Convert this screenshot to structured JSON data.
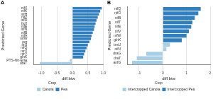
{
  "chart_data": [
    {
      "type": "bar",
      "title": "A",
      "orientation": "horizontal",
      "grid": true,
      "legend": "bottom",
      "legend_title": "Crop",
      "x_label": "diff.btw",
      "y_label": "Predicted Gene",
      "categories": [
        "nifX",
        "nifK",
        "nifH",
        "nifZ",
        "nifD",
        "fixX",
        "nifE",
        "nifN",
        "nifB",
        "nifA",
        "nifW",
        "por",
        "nifJ",
        "nifQ",
        "ntrX",
        "ntrY",
        "glnK",
        "PTS-Ntr-EIIA",
        "draT"
      ],
      "series": [
        {
          "name": "Canola",
          "color": "#a6cfe6",
          "values": [
            null,
            null,
            null,
            null,
            null,
            null,
            null,
            null,
            null,
            null,
            null,
            null,
            null,
            null,
            null,
            null,
            null,
            -0.08,
            -1.05
          ]
        },
        {
          "name": "Pea",
          "color": "#2f7fc1",
          "values": [
            0.95,
            0.9,
            0.86,
            0.82,
            0.78,
            0.75,
            0.72,
            0.7,
            0.66,
            0.62,
            0.6,
            0.55,
            0.5,
            0.46,
            0.42,
            0.38,
            0.35,
            null,
            null
          ]
        }
      ],
      "xlim": [
        -1.25,
        1.0
      ],
      "xticks": [
        {
          "value": -1,
          "label": "-1.0"
        },
        {
          "value": -0.5,
          "label": "-0.5"
        },
        {
          "value": 0,
          "label": "0.0"
        },
        {
          "value": 0.5,
          "label": "0.5"
        },
        {
          "value": 1,
          "label": "1.0"
        }
      ]
    },
    {
      "type": "bar",
      "title": "B",
      "orientation": "horizontal",
      "grid": true,
      "legend": "bottom",
      "legend_title": "Crop",
      "x_label": "diff.btw",
      "y_label": "Predicted Gene",
      "categories": [
        "nifQ",
        "nifO",
        "nifB",
        "nifT",
        "nifE",
        "nifV",
        "nifW",
        "glnK",
        "tesU",
        "nifU",
        "draG",
        "draT",
        "anfG"
      ],
      "series": [
        {
          "name": "Intercropped Canola",
          "color": "#a6cfe6",
          "values": [
            null,
            null,
            null,
            null,
            null,
            null,
            null,
            null,
            0.3,
            0.15,
            -0.7,
            -1.1,
            -1.3
          ]
        },
        {
          "name": "Intercropped Pea",
          "color": "#2f7fc1",
          "values": [
            1.6,
            1.5,
            1.35,
            1.25,
            1.2,
            1.1,
            1.0,
            0.8,
            null,
            null,
            null,
            null,
            null
          ]
        }
      ],
      "xlim": [
        -1.5,
        2
      ],
      "xticks": [
        -1,
        0,
        1,
        2
      ]
    }
  ]
}
